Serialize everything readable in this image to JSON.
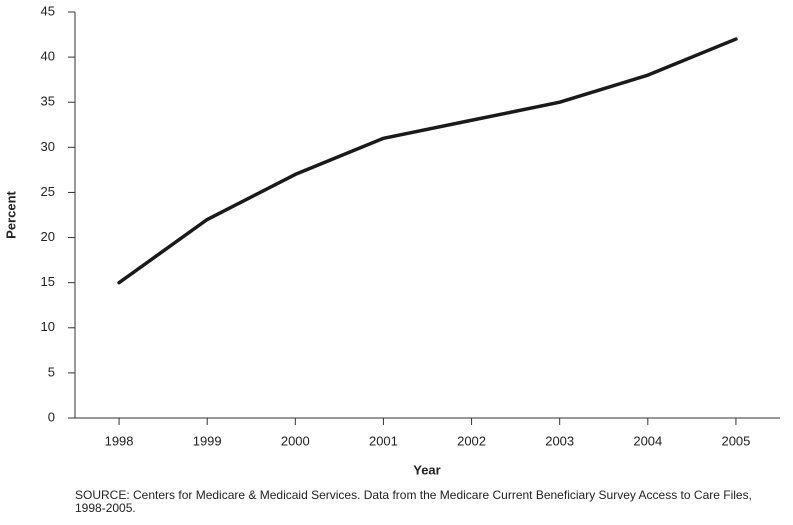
{
  "chart_data": {
    "type": "line",
    "x": [
      1998,
      1999,
      2000,
      2001,
      2002,
      2003,
      2004,
      2005
    ],
    "values": [
      15,
      22,
      27,
      31,
      33,
      35,
      38,
      42
    ],
    "color": "#1a1a1a",
    "xlim": [
      1997.5,
      2005.5
    ],
    "xticks": [
      1998,
      1999,
      2000,
      2001,
      2002,
      2003,
      2004,
      2005
    ],
    "ylim": [
      0,
      45
    ],
    "yticks": [
      0,
      5,
      10,
      15,
      20,
      25,
      30,
      35,
      40,
      45
    ],
    "xlabel": "Year",
    "ylabel": "Percent",
    "source": "SOURCE: Centers for Medicare & Medicaid Services. Data from the Medicare Current Beneficiary Survey Access to Care Files, 1998-2005."
  }
}
